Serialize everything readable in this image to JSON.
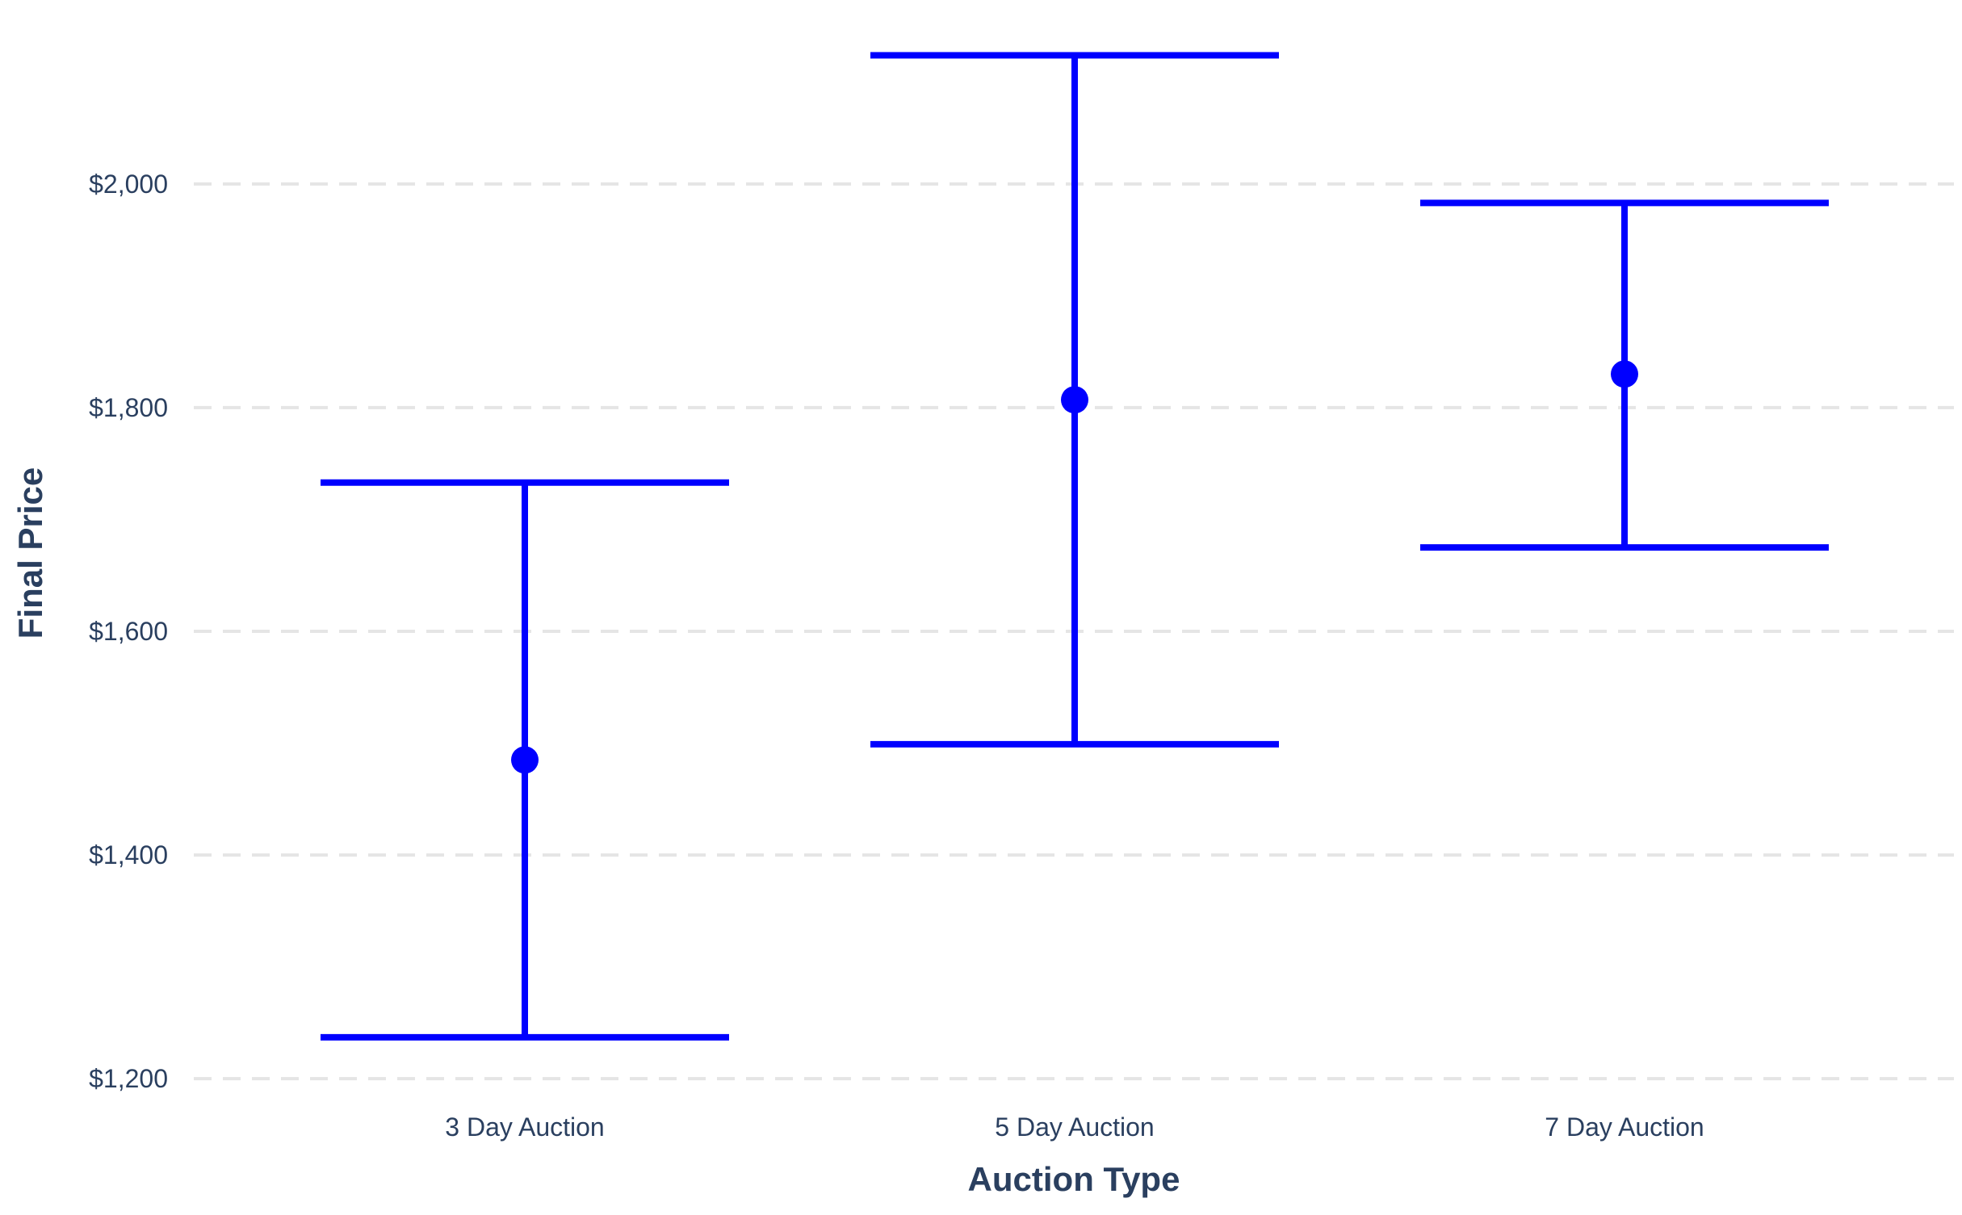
{
  "chart_data": {
    "type": "errorbar",
    "title": "",
    "xlabel": "Auction Type",
    "ylabel": "Final Price",
    "categories": [
      "3 Day Auction",
      "5 Day Auction",
      "7 Day Auction"
    ],
    "series": [
      {
        "values": [
          1485,
          1807,
          1830
        ],
        "lower": [
          1237,
          1499,
          1675
        ],
        "upper": [
          1733,
          2115,
          1983
        ]
      }
    ],
    "ylim": [
      1190,
      2150
    ],
    "yticks": [
      1200,
      1400,
      1600,
      1800,
      2000
    ],
    "ytick_labels": [
      "$1,200",
      "$1,400",
      "$1,600",
      "$1,800",
      "$2,000"
    ],
    "grid": "horizontal dashed",
    "legend": "none",
    "colors": {
      "series": "#0000ff",
      "grid": "#e5e5e5",
      "text": "#2a3f5f"
    }
  }
}
